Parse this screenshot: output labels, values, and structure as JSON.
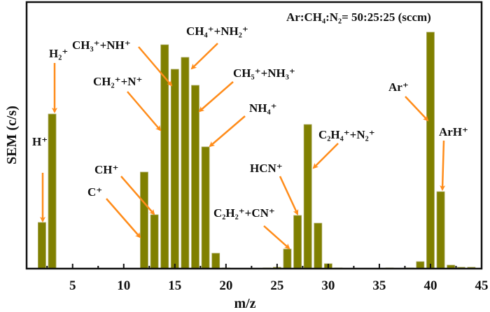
{
  "chart_data": {
    "type": "bar",
    "title": "",
    "xlabel": "m/z",
    "ylabel": "SEM (c/s)",
    "xlim": [
      0.5,
      45
    ],
    "ylim": [
      0,
      381
    ],
    "y_units": "arbitrary (no y tick labels shown)",
    "xticks": [
      5,
      10,
      15,
      20,
      25,
      30,
      35,
      40,
      45
    ],
    "x": [
      2,
      3,
      12,
      13,
      14,
      15,
      16,
      17,
      18,
      19,
      20,
      24,
      25,
      26,
      27,
      28,
      29,
      30,
      31,
      36,
      38,
      39,
      40,
      41,
      42,
      43,
      44
    ],
    "values": [
      66,
      221,
      138,
      77,
      320,
      285,
      302,
      262,
      174,
      22,
      1,
      1,
      2,
      28,
      76,
      206,
      65,
      7,
      1,
      1,
      1,
      10,
      338,
      110,
      5,
      2,
      2
    ],
    "bar_color": "#808000",
    "arrow_color": "#ff8c1a",
    "condition_label": "Ar:CH₄:N₂=  50:25:25 (sccm)",
    "annotations": [
      {
        "text": "H⁺",
        "mz": 2
      },
      {
        "text": "H₂⁺",
        "mz": 3
      },
      {
        "text": "CH₃⁺+NH⁺",
        "mz": 15
      },
      {
        "text": "CH₂⁺+N⁺",
        "mz": 14
      },
      {
        "text": "CH₄⁺+NH₂⁺",
        "mz": 16
      },
      {
        "text": "CH₅⁺+NH₃⁺",
        "mz": 17
      },
      {
        "text": "NH₄⁺",
        "mz": 18
      },
      {
        "text": "CH⁺",
        "mz": 13
      },
      {
        "text": "C⁺",
        "mz": 12
      },
      {
        "text": "C₂H₂⁺+CN⁺",
        "mz": 26
      },
      {
        "text": "HCN⁺",
        "mz": 27
      },
      {
        "text": "C₂H₄⁺+N₂⁺",
        "mz": 28
      },
      {
        "text": "Ar⁺",
        "mz": 40
      },
      {
        "text": "ArH⁺",
        "mz": 41
      }
    ],
    "grid": false,
    "legend": "none"
  }
}
